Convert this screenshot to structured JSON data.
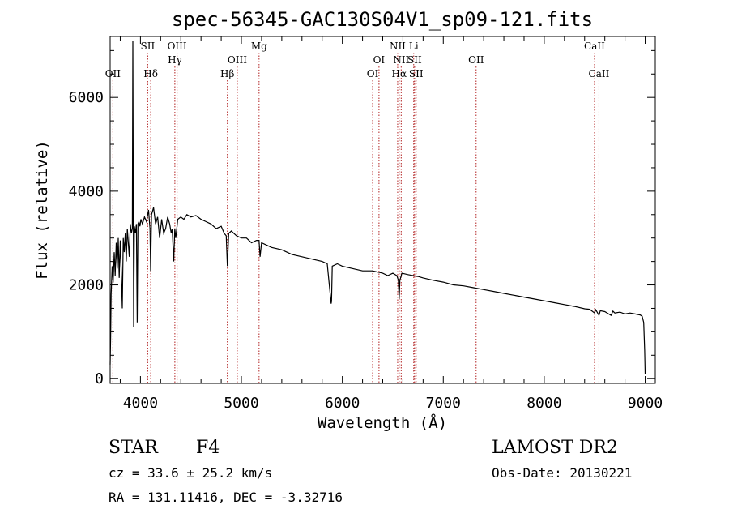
{
  "chart_data": {
    "type": "line",
    "title": "spec-56345-GAC130S04V1_sp09-121.fits",
    "xlabel": "Wavelength (Å)",
    "ylabel": "Flux (relative)",
    "xlim": [
      3700,
      9100
    ],
    "ylim": [
      -100,
      7300
    ],
    "x_ticks": [
      4000,
      5000,
      6000,
      7000,
      8000,
      9000
    ],
    "y_ticks": [
      0,
      2000,
      4000,
      6000
    ],
    "x_tick_labels": [
      "4000",
      "5000",
      "6000",
      "7000",
      "8000",
      "9000"
    ],
    "y_tick_labels": [
      "0",
      "2000",
      "4000",
      "6000"
    ],
    "series": [
      {
        "x": [
          3700,
          3705,
          3710,
          3720,
          3730,
          3740,
          3750,
          3760,
          3770,
          3780,
          3790,
          3800,
          3810,
          3820,
          3830,
          3840,
          3850,
          3860,
          3870,
          3880,
          3889,
          3900,
          3910,
          3920,
          3925,
          3933,
          3940,
          3950,
          3960,
          3968,
          3975,
          3985,
          3995,
          4005,
          4020,
          4040,
          4060,
          4080,
          4095,
          4101,
          4110,
          4130,
          4150,
          4170,
          4190,
          4210,
          4230,
          4250,
          4270,
          4290,
          4305,
          4315,
          4330,
          4340,
          4350,
          4370,
          4400,
          4430,
          4460,
          4500,
          4550,
          4600,
          4650,
          4700,
          4750,
          4800,
          4830,
          4850,
          4861,
          4875,
          4900,
          4950,
          5000,
          5050,
          5100,
          5150,
          5175,
          5185,
          5200,
          5250,
          5300,
          5400,
          5500,
          5600,
          5700,
          5800,
          5850,
          5889,
          5893,
          5900,
          5950,
          6000,
          6100,
          6200,
          6300,
          6400,
          6450,
          6500,
          6540,
          6555,
          6563,
          6570,
          6590,
          6650,
          6700,
          6750,
          6800,
          6900,
          7000,
          7100,
          7200,
          7300,
          7400,
          7500,
          7600,
          7700,
          7800,
          7900,
          8000,
          8100,
          8200,
          8300,
          8400,
          8450,
          8498,
          8510,
          8542,
          8555,
          8600,
          8662,
          8680,
          8700,
          8750,
          8800,
          8850,
          8900,
          8950,
          8970,
          8985,
          8995,
          9000
        ],
        "y": [
          300,
          900,
          1800,
          2400,
          2050,
          2700,
          2200,
          2900,
          2350,
          3000,
          2150,
          2950,
          2300,
          1500,
          3000,
          2700,
          3100,
          2500,
          3200,
          2900,
          2600,
          3300,
          3100,
          3200,
          7200,
          1100,
          3250,
          3100,
          3300,
          1200,
          3300,
          3350,
          3250,
          3400,
          3300,
          3450,
          3350,
          3600,
          3200,
          2300,
          3500,
          3650,
          3300,
          3450,
          3000,
          3400,
          3100,
          3200,
          3450,
          3300,
          3100,
          3200,
          2500,
          3200,
          3000,
          3400,
          3450,
          3400,
          3500,
          3450,
          3480,
          3400,
          3350,
          3300,
          3200,
          3250,
          3100,
          3050,
          2400,
          3100,
          3150,
          3050,
          3000,
          3000,
          2900,
          2950,
          2950,
          2600,
          2900,
          2850,
          2800,
          2750,
          2650,
          2600,
          2550,
          2500,
          2450,
          1600,
          1650,
          2400,
          2450,
          2400,
          2350,
          2300,
          2300,
          2250,
          2200,
          2250,
          2200,
          2100,
          1700,
          2100,
          2250,
          2220,
          2200,
          2180,
          2150,
          2100,
          2060,
          2000,
          1980,
          1940,
          1900,
          1860,
          1820,
          1780,
          1740,
          1700,
          1660,
          1620,
          1580,
          1540,
          1490,
          1480,
          1400,
          1470,
          1350,
          1450,
          1430,
          1350,
          1440,
          1400,
          1420,
          1380,
          1400,
          1380,
          1360,
          1330,
          1200,
          600,
          100
        ]
      }
    ],
    "line_markers": [
      {
        "label": "OII",
        "x": 3727,
        "row": 3
      },
      {
        "label": "SII",
        "x": 4072,
        "row": 1
      },
      {
        "label": "Hδ",
        "x": 4102,
        "row": 3
      },
      {
        "label": "OIII",
        "x": 4363,
        "row": 1
      },
      {
        "label": "Hγ",
        "x": 4341,
        "row": 2
      },
      {
        "label": "Hβ",
        "x": 4861,
        "row": 3
      },
      {
        "label": "OIII",
        "x": 4959,
        "row": 2
      },
      {
        "label": "Mg",
        "x": 5175,
        "row": 1
      },
      {
        "label": "OI",
        "x": 6300,
        "row": 3
      },
      {
        "label": "OI",
        "x": 6363,
        "row": 2
      },
      {
        "label": "NII",
        "x": 6548,
        "row": 1
      },
      {
        "label": "Li",
        "x": 6707,
        "row": 1
      },
      {
        "label": "NII",
        "x": 6583,
        "row": 2
      },
      {
        "label": "SII",
        "x": 6716,
        "row": 2
      },
      {
        "label": "Hα",
        "x": 6563,
        "row": 3
      },
      {
        "label": "SII",
        "x": 6731,
        "row": 3
      },
      {
        "label": "OII",
        "x": 7325,
        "row": 2
      },
      {
        "label": "CaII",
        "x": 8498,
        "row": 1
      },
      {
        "label": "CaII",
        "x": 8542,
        "row": 3
      }
    ],
    "marker_color": "#b22222",
    "line_color": "#000000",
    "grid": false
  },
  "info": {
    "object_class": "STAR",
    "subclass": "F4",
    "survey": "LAMOST DR2",
    "redshift": "cz = 33.6 ± 25.2 km/s",
    "obs_date": "Obs-Date: 20130221",
    "coords": "RA = 131.11416, DEC =  -3.32716"
  }
}
